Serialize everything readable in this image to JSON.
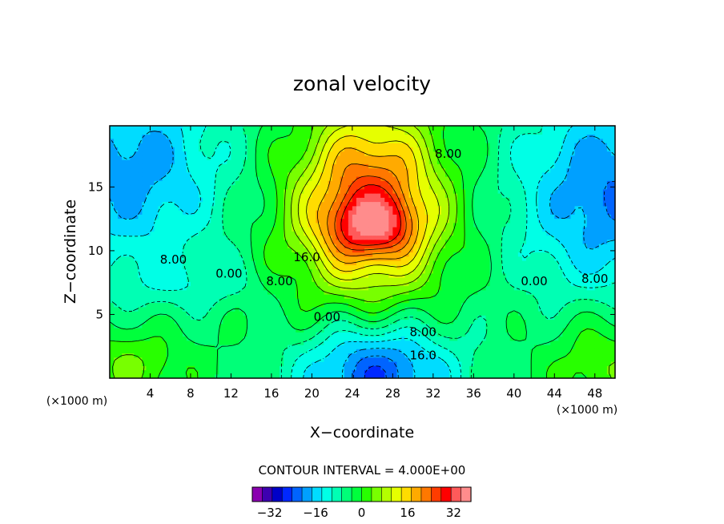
{
  "chart_data": {
    "type": "heatmap",
    "title": "zonal velocity",
    "xlabel": "X−coordinate",
    "ylabel": "Z−coordinate",
    "x_unit_left": "(×1000 m)",
    "x_unit_right": "(×1000 m)",
    "xlim": [
      0,
      50
    ],
    "ylim": [
      0,
      19.8
    ],
    "xticks": [
      4,
      8,
      12,
      16,
      20,
      24,
      28,
      32,
      36,
      40,
      44,
      48
    ],
    "yticks": [
      5,
      10,
      15
    ],
    "contour_interval_text": "CONTOUR INTERVAL = 4.000E+00",
    "contour_interval": 4,
    "level_range": [
      -38,
      38
    ],
    "contour_labels": [
      {
        "text": "8.00",
        "x": 6.3,
        "y": 9.3
      },
      {
        "text": "0.00",
        "x": 11.8,
        "y": 8.2
      },
      {
        "text": "8.00",
        "x": 16.8,
        "y": 7.6
      },
      {
        "text": "16.0",
        "x": 19.5,
        "y": 9.5
      },
      {
        "text": "8.00",
        "x": 33.5,
        "y": 17.6
      },
      {
        "text": "0.00",
        "x": 42.0,
        "y": 7.6
      },
      {
        "text": "8.00",
        "x": 48.0,
        "y": 7.8
      },
      {
        "text": "0.00",
        "x": 21.5,
        "y": 4.8
      },
      {
        "text": "8.00",
        "x": 31.0,
        "y": 3.6
      },
      {
        "text": "16.0",
        "x": 31.0,
        "y": 1.8
      }
    ],
    "colorbar": {
      "colors": [
        "#8a00b0",
        "#3d00b0",
        "#0000c8",
        "#0028ff",
        "#0064ff",
        "#00a0ff",
        "#00dcff",
        "#00ffe6",
        "#00ffb4",
        "#00ff78",
        "#00ff3c",
        "#28ff00",
        "#78ff00",
        "#b4ff00",
        "#e6ff00",
        "#ffdc00",
        "#ffaa00",
        "#ff7800",
        "#ff3c00",
        "#ff0000",
        "#ff5a5a",
        "#ff8c8c"
      ],
      "tick_labels": [
        "−32",
        "−16",
        "0",
        "16",
        "32"
      ],
      "tick_values": [
        -32,
        -16,
        0,
        16,
        32
      ]
    }
  }
}
